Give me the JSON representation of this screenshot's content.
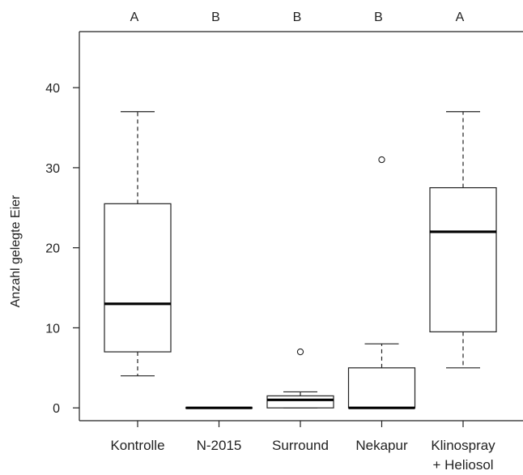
{
  "chart_data": {
    "type": "box",
    "xlabel": "",
    "ylabel": "Anzahl gelegte Eier",
    "ylim": [
      -1.6,
      47
    ],
    "yticks": [
      0,
      10,
      20,
      30,
      40
    ],
    "categories": [
      {
        "label": [
          "Kontrolle"
        ],
        "letter": "A",
        "whisker_low": 4,
        "q1": 7,
        "median": 13,
        "q3": 25.5,
        "whisker_high": 37,
        "outliers": []
      },
      {
        "label": [
          "N-2015"
        ],
        "letter": "B",
        "whisker_low": 0,
        "q1": 0,
        "median": 0,
        "q3": 0,
        "whisker_high": 0,
        "outliers": []
      },
      {
        "label": [
          "Surround"
        ],
        "letter": "B",
        "whisker_low": 0,
        "q1": 0,
        "median": 1,
        "q3": 1.5,
        "whisker_high": 2,
        "outliers": [
          7
        ]
      },
      {
        "label": [
          "Nekapur"
        ],
        "letter": "B",
        "whisker_low": 0,
        "q1": 0,
        "median": 0,
        "q3": 5,
        "whisker_high": 8,
        "outliers": [
          31
        ]
      },
      {
        "label": [
          "Klinospray",
          "+ Heliosol"
        ],
        "letter": "A",
        "whisker_low": 5,
        "q1": 9.5,
        "median": 22,
        "q3": 27.5,
        "whisker_high": 37,
        "outliers": []
      }
    ]
  }
}
